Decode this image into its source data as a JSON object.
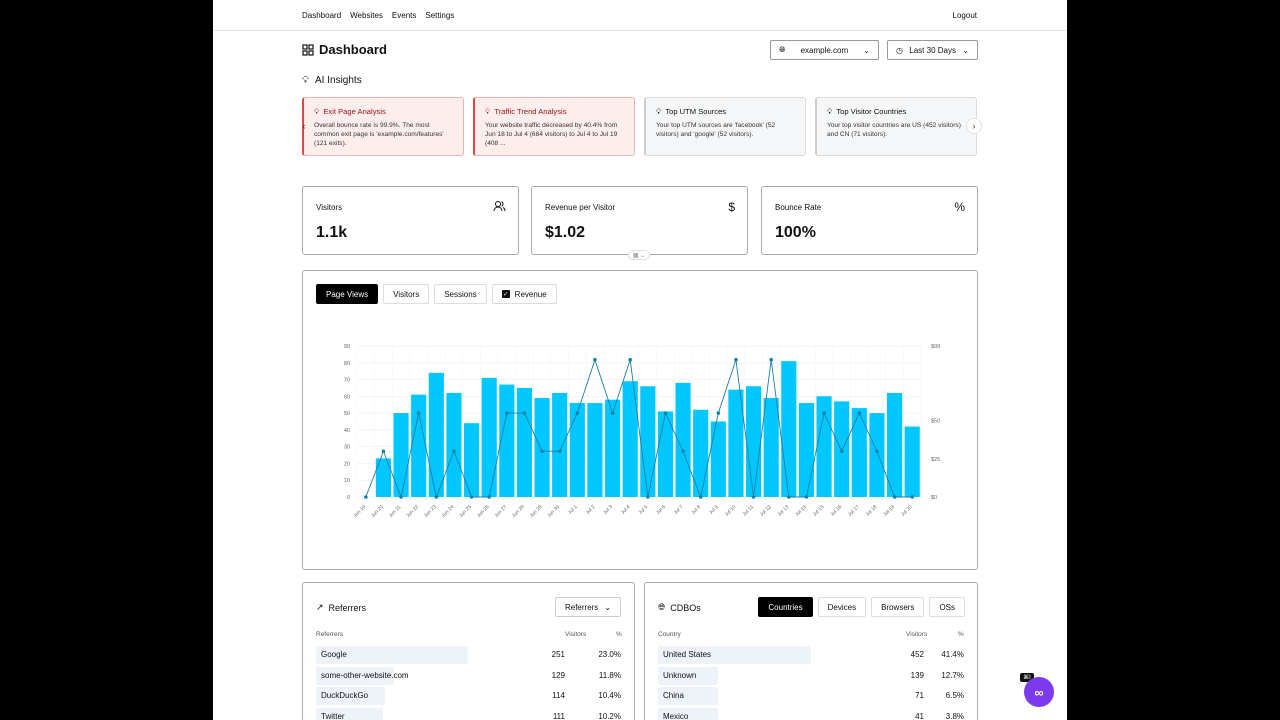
{
  "nav": {
    "links": [
      "Dashboard",
      "Websites",
      "Events",
      "Settings"
    ],
    "logout": "Logout"
  },
  "header": {
    "title": "Dashboard",
    "site": "example.com",
    "range": "Last 30 Days"
  },
  "insights": {
    "title": "AI Insights",
    "cards": [
      {
        "title": "Exit Page Analysis",
        "body": "Overall bounce rate is 99.9%. The most common exit page is 'example.com/features' (121 exits).",
        "style": "red"
      },
      {
        "title": "Traffic Trend Analysis",
        "body": "Your website traffic decreased by 40.4% from Jun 18 to Jul 4 (684 visitors) to Jul 4 to Jul 19 (408 ...",
        "style": "red"
      },
      {
        "title": "Top UTM Sources",
        "body": "Your top UTM sources are 'facebook' (52 visitors) and 'google' (52 visitors).",
        "style": "grey"
      },
      {
        "title": "Top Visitor Countries",
        "body": "Your top visitor countries are US (452 visitors) and CN (71 visitors).",
        "style": "grey"
      }
    ]
  },
  "stats": [
    {
      "label": "Visitors",
      "value": "1.1k",
      "icon": "users-icon"
    },
    {
      "label": "Revenue per Visitor",
      "value": "$1.02",
      "icon": "dollar-icon"
    },
    {
      "label": "Bounce Rate",
      "value": "100%",
      "icon": "percent-icon"
    }
  ],
  "chart_tabs": {
    "page_views": "Page Views",
    "visitors": "Visitors",
    "sessions": "Sessions",
    "revenue": "Revenue"
  },
  "chart_data": {
    "type": "bar",
    "categories": [
      "Jun 19",
      "Jun 20",
      "Jun 21",
      "Jun 22",
      "Jun 23",
      "Jun 24",
      "Jun 25",
      "Jun 26",
      "Jun 27",
      "Jun 28",
      "Jun 29",
      "Jun 30",
      "Jul 1",
      "Jul 2",
      "Jul 3",
      "Jul 4",
      "Jul 5",
      "Jul 6",
      "Jul 7",
      "Jul 8",
      "Jul 9",
      "Jul 10",
      "Jul 11",
      "Jul 12",
      "Jul 13",
      "Jul 14",
      "Jul 15",
      "Jul 16",
      "Jul 17",
      "Jul 18",
      "Jul 19",
      "Jul 20"
    ],
    "series": [
      {
        "name": "Page Views",
        "type": "bar",
        "color": "#00c8ff",
        "values": [
          0,
          23,
          50,
          61,
          74,
          62,
          44,
          71,
          67,
          65,
          59,
          62,
          56,
          56,
          58,
          69,
          66,
          51,
          68,
          52,
          45,
          64,
          66,
          59,
          81,
          56,
          60,
          57,
          53,
          50,
          62,
          42
        ]
      },
      {
        "name": "Revenue",
        "type": "line",
        "color": "#1a7fa6",
        "values": [
          0,
          30,
          0,
          55,
          0,
          30,
          0,
          0,
          55,
          55,
          30,
          30,
          55,
          90,
          55,
          90,
          0,
          55,
          30,
          0,
          55,
          90,
          0,
          90,
          0,
          0,
          55,
          30,
          55,
          30,
          0,
          0
        ]
      }
    ],
    "ylim": [
      0,
      90
    ],
    "yticks": [
      0,
      10,
      20,
      30,
      40,
      50,
      60,
      70,
      80,
      90
    ],
    "y2lim": [
      0,
      99
    ],
    "y2ticks": [
      "$0",
      "$25",
      "$50",
      "$99"
    ],
    "grid": true
  },
  "referrers": {
    "title": "Referrers",
    "dropdown": "Referrers",
    "cols": [
      "Referrers",
      "Visitors",
      "%"
    ],
    "rows": [
      {
        "name": "Google",
        "visitors": "251",
        "pct": "23.0%",
        "share": 0.23
      },
      {
        "name": "some-other-website.com",
        "visitors": "129",
        "pct": "11.8%",
        "share": 0.118
      },
      {
        "name": "DuckDuckGo",
        "visitors": "114",
        "pct": "10.4%",
        "share": 0.104
      },
      {
        "name": "Twitter",
        "visitors": "111",
        "pct": "10.2%",
        "share": 0.102
      }
    ]
  },
  "geo": {
    "title": "CDBOs",
    "tabs": [
      "Countries",
      "Devices",
      "Browsers",
      "OSs"
    ],
    "cols": [
      "Country",
      "Visitors",
      "%"
    ],
    "rows": [
      {
        "name": "United States",
        "visitors": "452",
        "pct": "41.4%",
        "share": 0.414
      },
      {
        "name": "Unknown",
        "visitors": "139",
        "pct": "12.7%",
        "share": 0.127
      },
      {
        "name": "China",
        "visitors": "71",
        "pct": "6.5%",
        "share": 0.065
      },
      {
        "name": "Mexico",
        "visitors": "41",
        "pct": "3.8%",
        "share": 0.038
      }
    ]
  },
  "fab": {
    "label": "∞",
    "tag": "⌘I"
  }
}
